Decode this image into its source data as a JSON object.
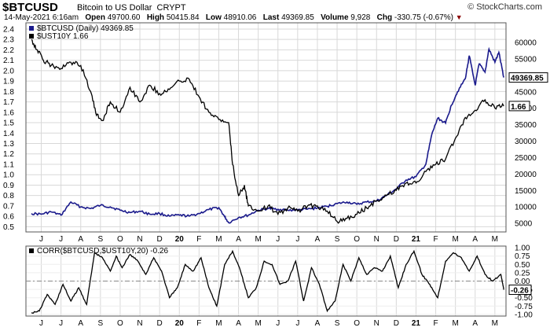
{
  "header": {
    "symbol": "$BTCUSD",
    "description": "Bitcoin to US Dollar",
    "exchange": "CRYPT",
    "brand": "© StockCharts.com",
    "date": "14-May-2021 6:16am",
    "open_label": "Open",
    "open": "49700.60",
    "high_label": "High",
    "high": "50415.84",
    "low_label": "Low",
    "low": "48910.06",
    "last_label": "Last",
    "last": "49369.85",
    "volume_label": "Volume",
    "volume": "9,928",
    "chg_label": "Chg",
    "chg": "-330.75 (-0.67%)"
  },
  "colors": {
    "btc": "#1a1a8c",
    "ust": "#000000",
    "grid": "#d8d8d8",
    "zero": "#888888"
  },
  "chart_data": [
    {
      "type": "line",
      "legend": [
        {
          "label": "$BTCUSD (Daily) 49369.85",
          "color": "#1a1a8c"
        },
        {
          "label": "$UST10Y 1.66",
          "color": "#000000"
        }
      ],
      "legend_position": "top-left",
      "x_ticks": [
        "J",
        "J",
        "A",
        "S",
        "O",
        "N",
        "D",
        "20",
        "F",
        "M",
        "A",
        "M",
        "J",
        "J",
        "A",
        "S",
        "O",
        "N",
        "D",
        "21",
        "F",
        "M",
        "A",
        "M"
      ],
      "x_tick_bold": [
        "20",
        "21"
      ],
      "y_left_ticks": [
        "2.4",
        "2.3",
        "2.2",
        "2.1",
        "2.0",
        "1.9",
        "1.8",
        "1.7",
        "1.6",
        "1.5",
        "1.4",
        "1.3",
        "1.2",
        "1.1",
        "1.0",
        "0.9",
        "0.8",
        "0.7",
        "0.6",
        "0.5"
      ],
      "y_right_ticks": [
        "60000",
        "55000",
        "50000",
        "45000",
        "40000",
        "35000",
        "30000",
        "25000",
        "20000",
        "15000",
        "10000",
        "5000"
      ],
      "ylim_left": [
        0.45,
        2.46
      ],
      "ylim_right": [
        2400,
        66000
      ],
      "last_value_btc": "49369.85",
      "last_value_ust": "1.66",
      "grid": true,
      "series": [
        {
          "name": "$BTCUSD (Daily) 49369.85",
          "axis": "right",
          "x": [
            0,
            0.5,
            1,
            1.5,
            2,
            2.5,
            3,
            3.5,
            4,
            4.5,
            5,
            5.5,
            6,
            6.5,
            7,
            7.5,
            8,
            8.5,
            9,
            9.5,
            9.8,
            10,
            10.5,
            11,
            11.5,
            12,
            12.5,
            13,
            13.5,
            14,
            14.5,
            15,
            15.5,
            16,
            16.5,
            17,
            17.5,
            18,
            18.5,
            19,
            19.5,
            20,
            20.3,
            20.6,
            21,
            21.3,
            21.6,
            22,
            22.2,
            22.5,
            22.7,
            23,
            23.2,
            23.5,
            23.7,
            23.95
          ],
          "y": [
            8000,
            7800,
            8500,
            7500,
            11500,
            10000,
            9500,
            10500,
            10000,
            9000,
            8300,
            8700,
            7800,
            8000,
            7200,
            7500,
            7200,
            8000,
            9200,
            9800,
            7000,
            5200,
            6800,
            7500,
            9000,
            9500,
            9300,
            9000,
            9100,
            9300,
            9700,
            10200,
            11000,
            11500,
            10800,
            11500,
            11800,
            13500,
            15500,
            18200,
            19200,
            23000,
            32000,
            37000,
            35500,
            41000,
            45000,
            49000,
            56000,
            47000,
            53500,
            51000,
            58000,
            54000,
            57000,
            49369.85
          ]
        },
        {
          "name": "$UST10Y 1.66",
          "axis": "left",
          "x": [
            0,
            0.3,
            0.6,
            1,
            1.5,
            2,
            2.5,
            3,
            3.3,
            3.6,
            4,
            4.5,
            5,
            5.5,
            6,
            6.5,
            7,
            7.5,
            8,
            8.5,
            9,
            9.5,
            10,
            10.2,
            10.5,
            10.8,
            11,
            11.5,
            12,
            12.5,
            13,
            13.5,
            14,
            14.5,
            15,
            15.5,
            16,
            16.5,
            17,
            17.5,
            18,
            18.5,
            19,
            19.5,
            20,
            20.5,
            21,
            21.5,
            22,
            22.5,
            23,
            23.5,
            23.95
          ],
          "y": [
            2.3,
            2.2,
            2.1,
            2.05,
            2.02,
            2.08,
            2.05,
            1.8,
            1.57,
            1.52,
            1.7,
            1.6,
            1.84,
            1.7,
            1.86,
            1.78,
            1.82,
            1.9,
            1.92,
            1.75,
            1.6,
            1.53,
            1.5,
            1.1,
            0.8,
            0.9,
            0.7,
            0.65,
            0.7,
            0.62,
            0.68,
            0.65,
            0.7,
            0.7,
            0.65,
            0.55,
            0.58,
            0.62,
            0.68,
            0.75,
            0.8,
            0.85,
            0.92,
            0.92,
            1.03,
            1.1,
            1.15,
            1.35,
            1.55,
            1.62,
            1.72,
            1.64,
            1.66
          ]
        }
      ]
    },
    {
      "type": "line",
      "title": "CORR($BTCUSD,$UST10Y,20) -0.26",
      "y_ticks": [
        "1.00",
        "0.75",
        "0.50",
        "0.25",
        "0.00",
        "-0.25",
        "-0.50",
        "-0.75",
        "-1.00"
      ],
      "ylim": [
        -1.05,
        1.05
      ],
      "last_value": "-0.26",
      "reference_line": 0,
      "series": [
        {
          "name": "CORR($BTCUSD,$UST10Y,20)",
          "x": [
            0,
            0.4,
            0.8,
            1.2,
            1.6,
            2,
            2.4,
            2.8,
            3.2,
            3.6,
            4,
            4.3,
            4.6,
            5,
            5.4,
            5.8,
            6.2,
            6.6,
            7,
            7.4,
            7.8,
            8.2,
            8.6,
            9,
            9.4,
            9.8,
            10.2,
            10.6,
            11,
            11.4,
            11.8,
            12.2,
            12.6,
            13,
            13.4,
            13.8,
            14.2,
            14.6,
            15,
            15.4,
            15.8,
            16.2,
            16.6,
            17,
            17.4,
            17.8,
            18.2,
            18.6,
            19,
            19.4,
            19.8,
            20.2,
            20.6,
            21,
            21.4,
            21.8,
            22.2,
            22.6,
            23,
            23.4,
            23.8,
            23.95
          ],
          "y": [
            -0.95,
            -0.9,
            -0.4,
            -0.7,
            -0.1,
            -0.6,
            -0.2,
            -0.7,
            0.85,
            0.7,
            0.3,
            0.75,
            0.4,
            0.8,
            0.6,
            0.2,
            0.7,
            0.3,
            -0.5,
            -0.2,
            0.5,
            0.3,
            0.7,
            -0.2,
            -0.75,
            0.5,
            0.9,
            0.3,
            -0.5,
            -0.2,
            0.6,
            0.5,
            -0.1,
            0.0,
            0.6,
            -0.6,
            0.4,
            -0.1,
            -0.9,
            -0.6,
            0.5,
            0.0,
            0.7,
            0.2,
            0.4,
            0.3,
            0.75,
            -0.2,
            0.5,
            0.9,
            0.2,
            -0.1,
            -0.5,
            0.6,
            0.85,
            0.7,
            0.3,
            0.75,
            0.2,
            0.0,
            0.2,
            -0.26
          ]
        }
      ]
    }
  ]
}
